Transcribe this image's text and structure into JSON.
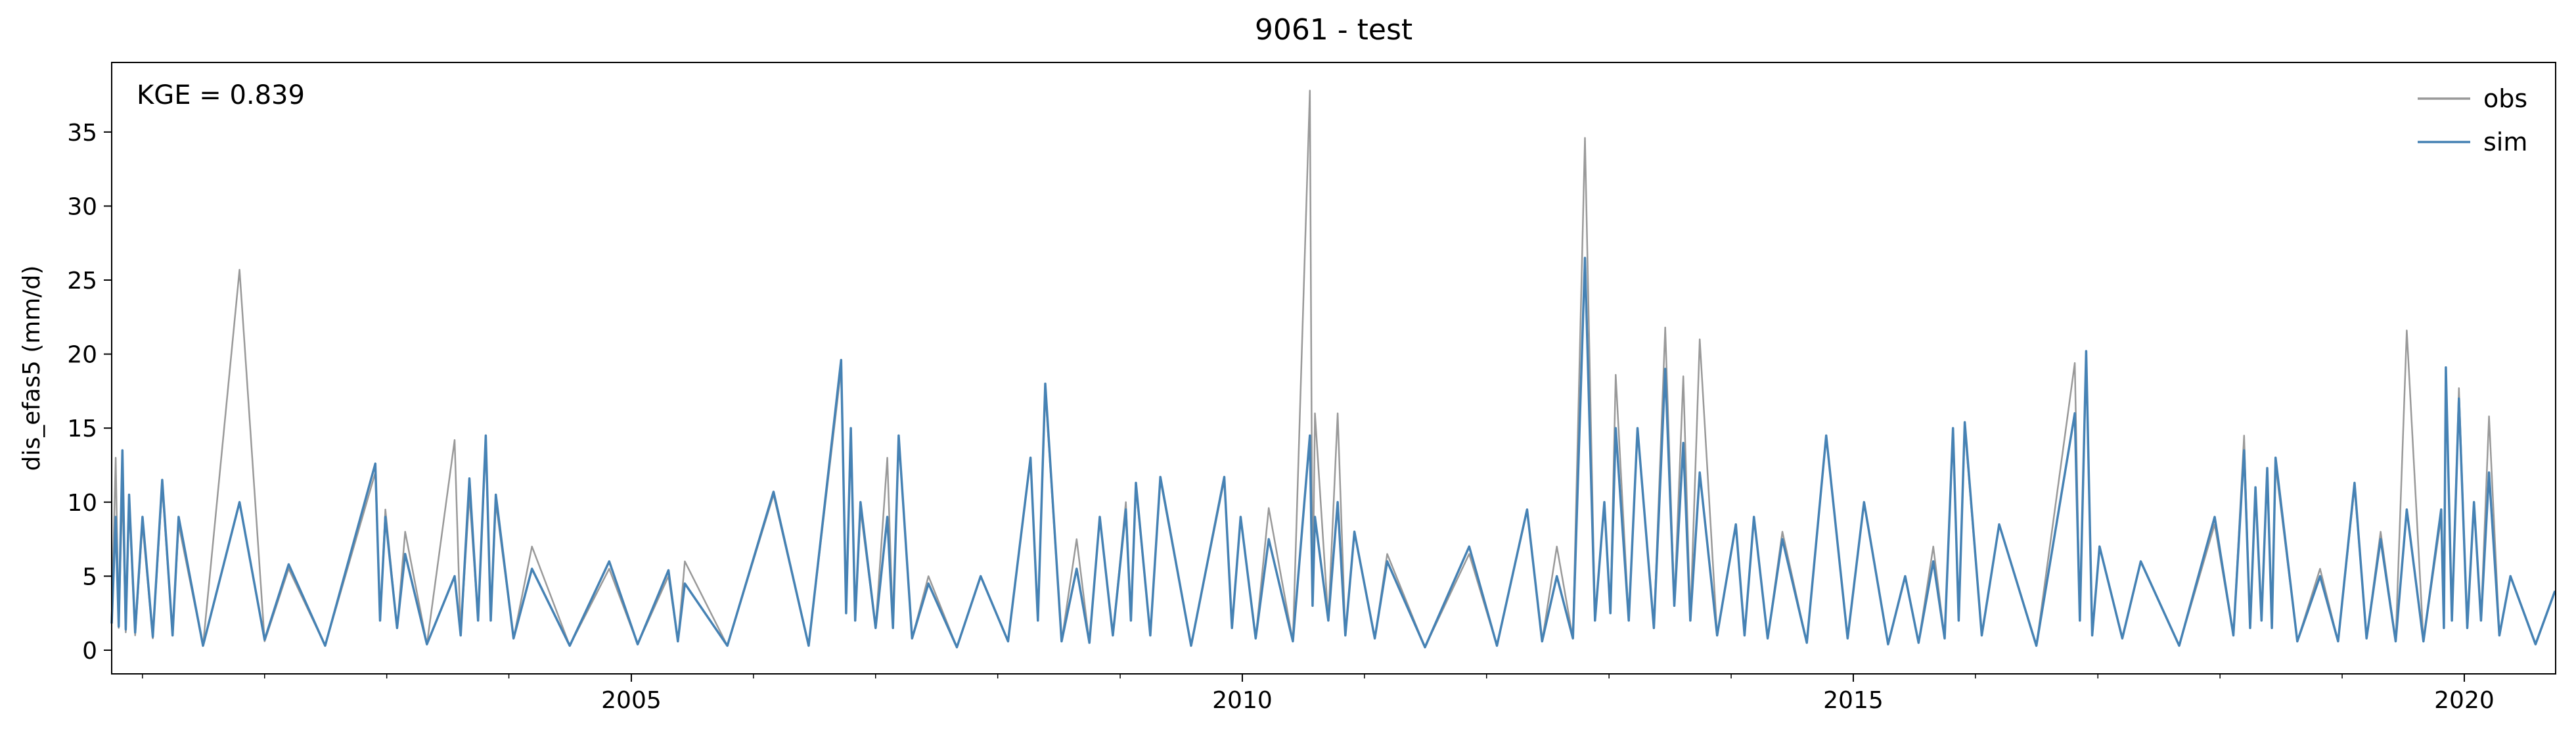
{
  "chart_data": {
    "type": "line",
    "title": "9061 - test",
    "ylabel": "dis_efas5 (mm/d)",
    "annotation": "KGE = 0.839",
    "legend": "upper right",
    "grid": false,
    "xlim": [
      "2000-10-01",
      "2020-09-30"
    ],
    "xticks": [
      {
        "value": "2005-01-01",
        "label": "2005"
      },
      {
        "value": "2010-01-01",
        "label": "2010"
      },
      {
        "value": "2015-01-01",
        "label": "2015"
      },
      {
        "value": "2020-01-01",
        "label": "2020"
      }
    ],
    "xminorticks": [
      "2001-01-01",
      "2002-01-01",
      "2003-01-01",
      "2004-01-01",
      "2006-01-01",
      "2007-01-01",
      "2008-01-01",
      "2009-01-01",
      "2011-01-01",
      "2012-01-01",
      "2013-01-01",
      "2014-01-01",
      "2016-01-01",
      "2017-01-01",
      "2018-01-01",
      "2019-01-01"
    ],
    "ylim": [
      -1.6,
      39.7
    ],
    "yticks": [
      0,
      5,
      10,
      15,
      20,
      25,
      30,
      35
    ],
    "x": [
      "2000-10-01",
      "2000-10-13",
      "2000-10-22",
      "2000-11-02",
      "2000-11-12",
      "2000-11-22",
      "2000-12-10",
      "2001-01-01",
      "2001-02-01",
      "2001-03-01",
      "2001-04-01",
      "2001-04-19",
      "2001-07-01",
      "2001-10-18",
      "2002-01-01",
      "2002-03-14",
      "2002-07-01",
      "2002-11-28",
      "2002-12-12",
      "2002-12-28",
      "2003-02-01",
      "2003-02-25",
      "2003-05-01",
      "2003-07-23",
      "2003-08-10",
      "2003-09-05",
      "2003-10-01",
      "2003-10-24",
      "2003-11-08",
      "2003-11-23",
      "2004-01-15",
      "2004-03-10",
      "2004-07-01",
      "2004-10-27",
      "2005-01-20",
      "2005-04-22",
      "2005-05-20",
      "2005-06-10",
      "2005-10-15",
      "2006-03-02",
      "2006-06-15",
      "2006-09-20",
      "2006-10-05",
      "2006-10-19",
      "2006-11-01",
      "2006-11-17",
      "2007-01-01",
      "2007-02-05",
      "2007-02-22",
      "2007-03-11",
      "2007-04-20",
      "2007-06-08",
      "2007-09-01",
      "2007-11-11",
      "2008-02-01",
      "2008-04-08",
      "2008-04-30",
      "2008-05-22",
      "2008-07-10",
      "2008-08-24",
      "2008-10-01",
      "2008-11-01",
      "2008-12-10",
      "2009-01-18",
      "2009-02-02",
      "2009-02-17",
      "2009-04-01",
      "2009-05-01",
      "2009-08-01",
      "2009-11-08",
      "2009-12-01",
      "2009-12-27",
      "2010-02-10",
      "2010-03-21",
      "2010-06-01",
      "2010-07-22",
      "2010-07-30",
      "2010-08-06",
      "2010-09-15",
      "2010-10-13",
      "2010-11-05",
      "2010-12-02",
      "2011-02-01",
      "2011-03-10",
      "2011-07-01",
      "2011-11-10",
      "2012-02-01",
      "2012-05-01",
      "2012-06-15",
      "2012-07-29",
      "2012-09-15",
      "2012-10-21",
      "2012-11-20",
      "2012-12-18",
      "2013-01-05",
      "2013-01-21",
      "2013-03-01",
      "2013-03-27",
      "2013-05-15",
      "2013-06-18",
      "2013-07-15",
      "2013-08-11",
      "2013-09-01",
      "2013-09-29",
      "2013-11-20",
      "2014-01-15",
      "2014-02-10",
      "2014-03-10",
      "2014-04-20",
      "2014-06-03",
      "2014-08-15",
      "2014-10-12",
      "2014-12-15",
      "2015-02-02",
      "2015-04-15",
      "2015-06-05",
      "2015-07-15",
      "2015-08-28",
      "2015-10-01",
      "2015-10-26",
      "2015-11-12",
      "2015-11-30",
      "2016-01-20",
      "2016-03-12",
      "2016-07-01",
      "2016-10-24",
      "2016-11-08",
      "2016-11-27",
      "2016-12-15",
      "2017-01-06",
      "2017-03-15",
      "2017-05-09",
      "2017-09-01",
      "2017-12-16",
      "2018-02-10",
      "2018-03-14",
      "2018-04-01",
      "2018-04-17",
      "2018-05-05",
      "2018-05-22",
      "2018-06-05",
      "2018-06-16",
      "2018-08-20",
      "2018-10-27",
      "2018-12-20",
      "2019-02-07",
      "2019-03-15",
      "2019-04-26",
      "2019-06-10",
      "2019-07-13",
      "2019-09-01",
      "2019-10-24",
      "2019-11-01",
      "2019-11-07",
      "2019-11-25",
      "2019-12-16",
      "2020-01-10",
      "2020-01-30",
      "2020-02-20",
      "2020-03-15",
      "2020-04-15",
      "2020-05-18",
      "2020-08-01",
      "2020-09-28"
    ],
    "series": [
      {
        "name": "obs",
        "color": "#999999",
        "values": [
          2.0,
          13.0,
          1.5,
          11.0,
          1.2,
          10.0,
          1.0,
          8.5,
          0.8,
          11.0,
          1.0,
          8.5,
          0.3,
          25.7,
          0.6,
          5.5,
          0.3,
          12.0,
          2.0,
          9.5,
          1.5,
          8.0,
          0.4,
          14.2,
          1.0,
          10.5,
          2.0,
          14.0,
          2.0,
          10.0,
          0.8,
          7.0,
          0.3,
          5.5,
          0.4,
          5.0,
          0.6,
          6.0,
          0.3,
          10.5,
          0.3,
          19.0,
          2.5,
          15.0,
          2.0,
          9.5,
          1.5,
          13.0,
          1.5,
          14.5,
          0.8,
          5.0,
          0.2,
          5.0,
          0.6,
          13.0,
          2.0,
          17.5,
          0.6,
          7.5,
          0.5,
          9.0,
          1.0,
          10.0,
          2.0,
          11.0,
          1.0,
          11.5,
          0.3,
          11.5,
          1.5,
          9.0,
          0.8,
          9.6,
          0.6,
          37.8,
          3.0,
          16.0,
          2.0,
          16.0,
          1.0,
          8.0,
          0.8,
          6.5,
          0.2,
          6.5,
          0.3,
          9.5,
          0.6,
          7.0,
          0.8,
          34.6,
          2.0,
          10.0,
          2.5,
          18.6,
          2.0,
          15.0,
          1.5,
          21.8,
          3.0,
          18.5,
          2.0,
          21.0,
          1.0,
          8.5,
          1.0,
          9.0,
          0.8,
          8.0,
          0.5,
          14.5,
          0.8,
          10.0,
          0.4,
          5.0,
          0.5,
          7.0,
          0.8,
          15.0,
          2.0,
          15.0,
          1.0,
          8.5,
          0.3,
          19.4,
          2.0,
          19.5,
          1.0,
          7.0,
          0.8,
          6.0,
          0.3,
          8.5,
          1.0,
          14.5,
          1.5,
          11.0,
          2.0,
          12.0,
          1.5,
          12.5,
          0.6,
          5.5,
          0.6,
          11.0,
          0.8,
          8.0,
          0.6,
          21.6,
          0.6,
          9.0,
          1.5,
          18.5,
          2.0,
          17.7,
          1.5,
          10.0,
          2.0,
          15.8,
          1.0,
          5.0,
          0.4,
          4.0
        ]
      },
      {
        "name": "sim",
        "color": "#4682b4",
        "values": [
          1.8,
          9.0,
          1.6,
          13.5,
          1.4,
          10.5,
          1.2,
          9.0,
          0.9,
          11.5,
          1.0,
          9.0,
          0.3,
          10.0,
          0.7,
          5.8,
          0.3,
          12.6,
          2.0,
          9.0,
          1.5,
          6.5,
          0.4,
          5.0,
          1.0,
          11.6,
          2.0,
          14.5,
          2.0,
          10.5,
          0.8,
          5.5,
          0.3,
          6.0,
          0.4,
          5.4,
          0.6,
          4.5,
          0.3,
          10.7,
          0.3,
          19.6,
          2.5,
          15.0,
          2.0,
          10.0,
          1.5,
          9.0,
          1.5,
          14.5,
          0.8,
          4.5,
          0.2,
          5.0,
          0.6,
          13.0,
          2.0,
          18.0,
          0.6,
          5.5,
          0.5,
          9.0,
          1.0,
          9.5,
          2.0,
          11.3,
          1.0,
          11.7,
          0.3,
          11.7,
          1.5,
          9.0,
          0.8,
          7.5,
          0.6,
          14.5,
          3.0,
          9.0,
          2.0,
          10.0,
          1.0,
          8.0,
          0.8,
          6.0,
          0.2,
          7.0,
          0.3,
          9.5,
          0.6,
          5.0,
          0.8,
          26.5,
          2.0,
          10.0,
          2.5,
          15.0,
          2.0,
          15.0,
          1.5,
          19.0,
          3.0,
          14.0,
          2.0,
          12.0,
          1.0,
          8.5,
          1.0,
          9.0,
          0.8,
          7.5,
          0.5,
          14.5,
          0.8,
          10.0,
          0.4,
          5.0,
          0.5,
          6.0,
          0.8,
          15.0,
          2.0,
          15.4,
          1.0,
          8.5,
          0.3,
          16.0,
          2.0,
          20.2,
          1.0,
          7.0,
          0.8,
          6.0,
          0.3,
          9.0,
          1.0,
          13.5,
          1.5,
          11.0,
          2.0,
          12.3,
          1.5,
          13.0,
          0.6,
          5.0,
          0.6,
          11.3,
          0.8,
          7.5,
          0.6,
          9.5,
          0.6,
          9.5,
          1.5,
          19.1,
          2.0,
          17.0,
          1.5,
          10.0,
          2.0,
          12.0,
          1.0,
          5.0,
          0.4,
          4.0
        ]
      }
    ]
  }
}
